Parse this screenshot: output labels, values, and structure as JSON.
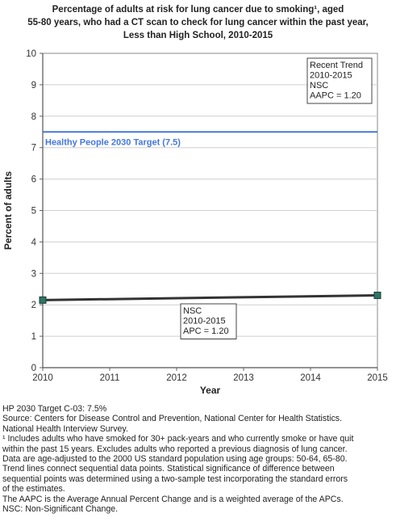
{
  "chart_data": {
    "type": "line",
    "title_lines": [
      "Percentage of adults at risk for lung cancer due to smoking¹, aged",
      "55-80 years, who had a CT scan to check for lung cancer within the past year,",
      "Less than High School,  2010-2015"
    ],
    "xlabel": "Year",
    "ylabel": "Percent of adults",
    "xlim": [
      2010,
      2015
    ],
    "ylim": [
      0,
      10
    ],
    "x_ticks": [
      "2010",
      "2011",
      "2012",
      "2013",
      "2014",
      "2015"
    ],
    "y_ticks": [
      "0",
      "1",
      "2",
      "3",
      "4",
      "5",
      "6",
      "7",
      "8",
      "9",
      "10"
    ],
    "grid": true,
    "series": [
      {
        "x": [
          2010,
          2015
        ],
        "y": [
          2.15,
          2.3
        ],
        "color": "#2e7566",
        "trend_color": "#333333"
      }
    ],
    "target": {
      "value": 7.5,
      "label": "Healthy People 2030 Target (7.5)",
      "color": "#4477dd"
    },
    "annotations": {
      "recent_trend": [
        "Recent Trend",
        "2010-2015",
        "NSC",
        "AAPC =  1.20"
      ],
      "segment": [
        "NSC",
        "2010-2015",
        "APC =  1.20"
      ]
    }
  },
  "footer": [
    "HP 2030 Target C-03: 7.5%",
    "Source: Centers for Disease Control and Prevention, National Center for Health Statistics.",
    "National Health Interview Survey.",
    "¹ Includes adults who have smoked for 30+ pack-years and who currently smoke or have quit",
    "within the past 15 years. Excludes adults who reported a previous diagnosis of lung cancer.",
    "Data are age-adjusted to the 2000 US standard population using age groups: 50-64, 65-80.",
    "Trend lines connect sequential data points. Statistical significance of difference between",
    "sequential points was determined using a two-sample test incorporating the standard errors",
    "of the estimates.",
    "The AAPC is the Average Annual Percent Change and is a weighted average of the APCs.",
    "NSC: Non-Significant Change."
  ]
}
